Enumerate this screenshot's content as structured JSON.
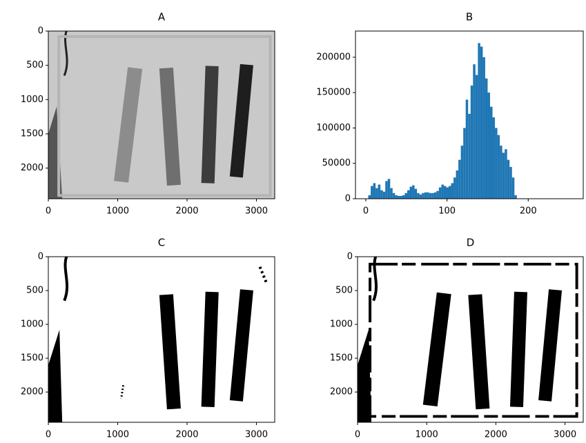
{
  "chart_data": [
    {
      "type": "image",
      "title": "A",
      "xlim": [
        -0.5,
        3263.5
      ],
      "ylim": [
        2447.5,
        -0.5
      ],
      "xticks": [
        0,
        1000,
        2000,
        3000
      ],
      "yticks": [
        0,
        500,
        1000,
        1500,
        2000
      ]
    },
    {
      "type": "histogram",
      "title": "B",
      "color": "#1f77b4",
      "bins": [
        0,
        3,
        6,
        9,
        12,
        15,
        18,
        21,
        24,
        27,
        30,
        33,
        36,
        39,
        42,
        45,
        48,
        51,
        54,
        57,
        60,
        63,
        66,
        69,
        72,
        75,
        78,
        81,
        84,
        87,
        90,
        93,
        96,
        99,
        102,
        105,
        108,
        111,
        114,
        117,
        120,
        123,
        126,
        129,
        132,
        135,
        138,
        141,
        144,
        147,
        150,
        153,
        156,
        159,
        162,
        165,
        168,
        171,
        174,
        177,
        180,
        183,
        186
      ],
      "values": [
        0,
        5000,
        18000,
        22000,
        15000,
        20000,
        12000,
        10000,
        25000,
        28000,
        15000,
        8000,
        5000,
        4000,
        4000,
        5000,
        8000,
        12000,
        17000,
        19000,
        14000,
        8000,
        6000,
        8000,
        9000,
        9000,
        8000,
        8000,
        9000,
        11000,
        16000,
        20000,
        18000,
        16000,
        18000,
        22000,
        30000,
        40000,
        55000,
        75000,
        100000,
        140000,
        120000,
        160000,
        190000,
        175000,
        220000,
        215000,
        200000,
        170000,
        150000,
        130000,
        115000,
        100000,
        90000,
        75000,
        65000,
        70000,
        55000,
        45000,
        30000,
        5000
      ],
      "xlim": [
        -12.75,
        267.75
      ],
      "ylim": [
        0,
        237000
      ],
      "xticks": [
        0,
        100,
        200
      ],
      "yticks": [
        0,
        50000,
        100000,
        150000,
        200000
      ]
    },
    {
      "type": "image",
      "title": "C",
      "xlim": [
        -0.5,
        3263.5
      ],
      "ylim": [
        2447.5,
        -0.5
      ],
      "xticks": [
        0,
        1000,
        2000,
        3000
      ],
      "yticks": [
        0,
        500,
        1000,
        1500,
        2000
      ]
    },
    {
      "type": "image",
      "title": "D",
      "xlim": [
        -0.5,
        3263.5
      ],
      "ylim": [
        2447.5,
        -0.5
      ],
      "xticks": [
        0,
        1000,
        2000,
        3000
      ],
      "yticks": [
        0,
        500,
        1000,
        1500,
        2000
      ]
    }
  ]
}
